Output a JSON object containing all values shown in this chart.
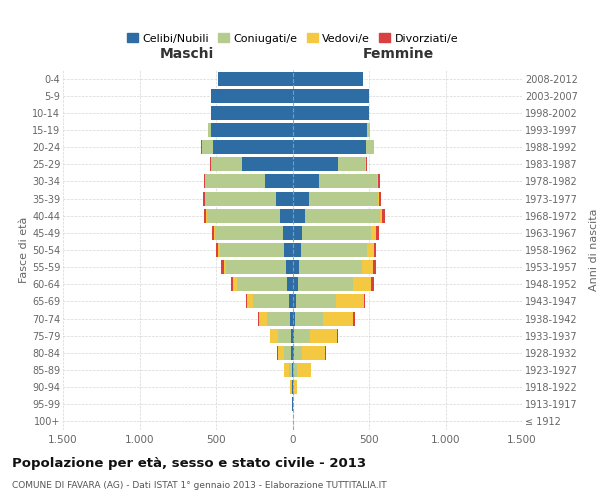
{
  "age_groups": [
    "100+",
    "95-99",
    "90-94",
    "85-89",
    "80-84",
    "75-79",
    "70-74",
    "65-69",
    "60-64",
    "55-59",
    "50-54",
    "45-49",
    "40-44",
    "35-39",
    "30-34",
    "25-29",
    "20-24",
    "15-19",
    "10-14",
    "5-9",
    "0-4"
  ],
  "birth_years": [
    "≤ 1912",
    "1913-1917",
    "1918-1922",
    "1923-1927",
    "1928-1932",
    "1933-1937",
    "1938-1942",
    "1943-1947",
    "1948-1952",
    "1953-1957",
    "1958-1962",
    "1963-1967",
    "1968-1972",
    "1973-1977",
    "1978-1982",
    "1983-1987",
    "1988-1992",
    "1993-1997",
    "1998-2002",
    "2003-2007",
    "2008-2012"
  ],
  "maschi": {
    "celibi": [
      0,
      1,
      3,
      5,
      8,
      12,
      18,
      25,
      35,
      45,
      55,
      65,
      80,
      110,
      180,
      330,
      520,
      530,
      530,
      530,
      490
    ],
    "coniugati": [
      0,
      1,
      5,
      20,
      45,
      80,
      150,
      230,
      330,
      390,
      420,
      440,
      480,
      460,
      390,
      200,
      70,
      20,
      0,
      0,
      0
    ],
    "vedovi": [
      0,
      2,
      8,
      30,
      45,
      55,
      50,
      40,
      25,
      15,
      10,
      5,
      3,
      3,
      2,
      2,
      2,
      0,
      0,
      0,
      0
    ],
    "divorziati": [
      0,
      0,
      0,
      2,
      3,
      3,
      5,
      8,
      15,
      18,
      15,
      18,
      15,
      10,
      8,
      5,
      3,
      0,
      0,
      0,
      0
    ]
  },
  "femmine": {
    "nubili": [
      0,
      1,
      3,
      5,
      8,
      12,
      18,
      25,
      35,
      45,
      55,
      65,
      80,
      110,
      175,
      300,
      480,
      490,
      500,
      500,
      460
    ],
    "coniugate": [
      0,
      1,
      8,
      25,
      55,
      100,
      180,
      260,
      360,
      410,
      430,
      450,
      490,
      450,
      380,
      175,
      50,
      15,
      0,
      0,
      0
    ],
    "vedove": [
      0,
      3,
      20,
      90,
      150,
      180,
      200,
      180,
      120,
      70,
      45,
      30,
      15,
      8,
      5,
      3,
      2,
      0,
      0,
      0,
      0
    ],
    "divorziate": [
      0,
      0,
      0,
      2,
      3,
      5,
      8,
      10,
      18,
      20,
      18,
      22,
      18,
      12,
      10,
      6,
      3,
      0,
      0,
      0,
      0
    ]
  },
  "colors": {
    "celibi_nubili": "#2E6DA4",
    "coniugati": "#B5CC8E",
    "vedovi": "#F5C842",
    "divorziati": "#D94040"
  },
  "title": "Popolazione per età, sesso e stato civile - 2013",
  "subtitle": "COMUNE DI FAVARA (AG) - Dati ISTAT 1° gennaio 2013 - Elaborazione TUTTITALIA.IT",
  "ylabel_left": "Fasce di età",
  "ylabel_right": "Anni di nascita",
  "xlabel_left": "Maschi",
  "xlabel_right": "Femmine",
  "xlim": 1500,
  "background_color": "#ffffff",
  "grid_color": "#cccccc",
  "legend_labels": [
    "Celibi/Nubili",
    "Coniugati/e",
    "Vedovi/e",
    "Divorziati/e"
  ]
}
